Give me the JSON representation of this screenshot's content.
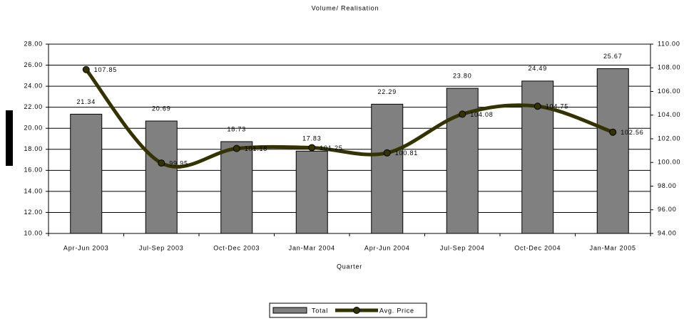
{
  "chart_data": {
    "type": "bar",
    "title": "Volume/ Realisation",
    "xlabel": "Quarter",
    "categories": [
      "Apr-Jun 2003",
      "Jul-Sep 2003",
      "Oct-Dec 2003",
      "Jan-Mar 2004",
      "Apr-Jun 2004",
      "Jul-Sep 2004",
      "Oct-Dec 2004",
      "Jan-Mar 2005"
    ],
    "series": [
      {
        "name": "Total",
        "type": "bar",
        "color": "#808080",
        "values": [
          21.34,
          20.69,
          18.73,
          17.83,
          22.29,
          23.8,
          24.49,
          25.67
        ],
        "value_labels": [
          "21.34",
          "20.69",
          "18.73",
          "17.83",
          "22.29",
          "23.80",
          "24.49",
          "25.67"
        ]
      },
      {
        "name": "Avg. Price",
        "type": "line",
        "axis": "y2",
        "color": "#333300",
        "values": [
          107.85,
          99.95,
          101.18,
          101.25,
          100.81,
          104.08,
          104.75,
          102.56
        ]
      }
    ],
    "ylim": [
      10,
      28
    ],
    "yticks": [
      {
        "value": 10,
        "label": "10.00"
      },
      {
        "value": 12,
        "label": "12.00"
      },
      {
        "value": 14,
        "label": "14.00"
      },
      {
        "value": 16,
        "label": "16.00"
      },
      {
        "value": 18,
        "label": "18.00"
      },
      {
        "value": 20,
        "label": "20.00"
      },
      {
        "value": 22,
        "label": "22.00"
      },
      {
        "value": 24,
        "label": "24.00"
      },
      {
        "value": 26,
        "label": "26.00"
      },
      {
        "value": 28,
        "label": "28.00"
      }
    ],
    "y2lim": [
      94,
      110
    ],
    "y2ticks": [
      {
        "value": 94,
        "label": "94.00"
      },
      {
        "value": 96,
        "label": "96.00"
      },
      {
        "value": 98,
        "label": "98.00"
      },
      {
        "value": 100,
        "label": "100.00"
      },
      {
        "value": 102,
        "label": "102.00"
      },
      {
        "value": 104,
        "label": "104.00"
      },
      {
        "value": 106,
        "label": "106.00"
      },
      {
        "value": 108,
        "label": "108.00"
      },
      {
        "value": 110,
        "label": "110.00"
      }
    ],
    "grid": true,
    "legend": "bottom"
  }
}
